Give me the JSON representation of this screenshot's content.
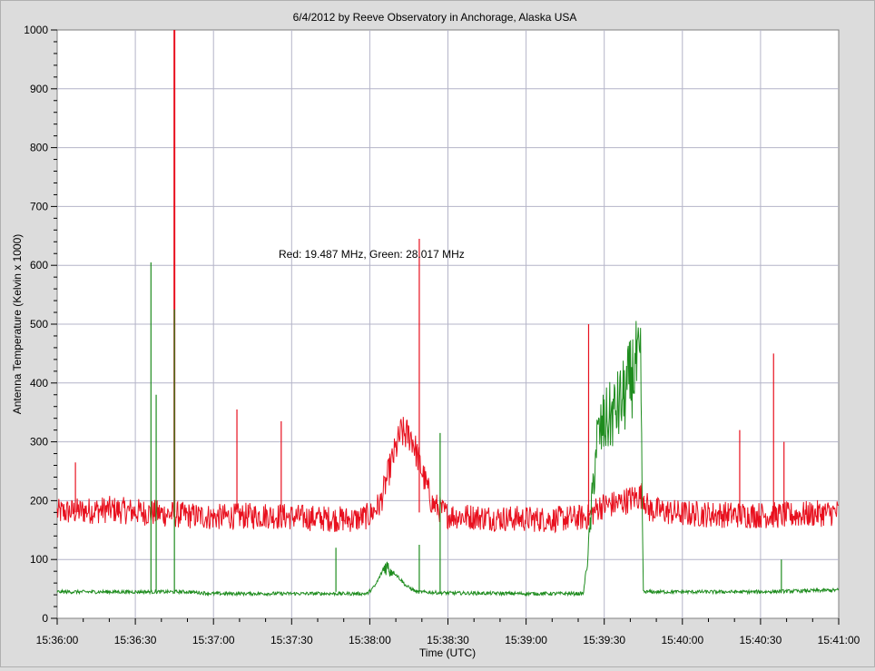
{
  "chart_data": {
    "type": "line",
    "title": "6/4/2012  by  Reeve Observatory  in  Anchorage, Alaska  USA",
    "annotation": "Red: 19.487 MHz, Green: 28.017 MHz",
    "xlabel": "Time (UTC)",
    "ylabel": "Antenna Temperature (Kelvin x 1000)",
    "xlim": [
      "15:36:00",
      "15:41:00"
    ],
    "ylim": [
      0,
      1000
    ],
    "x_tick_labels": [
      "15:36:00",
      "15:36:30",
      "15:37:00",
      "15:37:30",
      "15:38:00",
      "15:38:30",
      "15:39:00",
      "15:39:30",
      "15:40:00",
      "15:40:30",
      "15:41:00"
    ],
    "y_tick_labels": [
      "0",
      "100",
      "200",
      "300",
      "400",
      "500",
      "600",
      "700",
      "800",
      "900",
      "1000"
    ],
    "grid": true,
    "background": "#ffffff",
    "series": [
      {
        "color": "#e8101e",
        "baseline": 180,
        "x": [
          "15:36:00",
          "15:36:20",
          "15:36:40",
          "15:37:00",
          "15:37:20",
          "15:37:40",
          "15:37:55",
          "15:38:00",
          "15:38:04",
          "15:38:08",
          "15:38:12",
          "15:38:16",
          "15:38:20",
          "15:38:24",
          "15:38:30",
          "15:38:50",
          "15:39:10",
          "15:39:24",
          "15:39:28",
          "15:39:35",
          "15:39:45",
          "15:39:47",
          "15:40:00",
          "15:40:20",
          "15:40:40",
          "15:41:00"
        ],
        "y": [
          180,
          185,
          178,
          172,
          175,
          170,
          168,
          175,
          195,
          260,
          315,
          310,
          250,
          195,
          175,
          170,
          168,
          172,
          190,
          195,
          210,
          185,
          178,
          176,
          175,
          180
        ],
        "spikes": [
          {
            "x": "15:36:07",
            "y": 265
          },
          {
            "x": "15:36:45",
            "y": 1000
          },
          {
            "x": "15:37:09",
            "y": 355
          },
          {
            "x": "15:37:26",
            "y": 335
          },
          {
            "x": "15:38:19",
            "y": 645
          },
          {
            "x": "15:39:24",
            "y": 500
          },
          {
            "x": "15:40:22",
            "y": 320
          },
          {
            "x": "15:40:35",
            "y": 450
          },
          {
            "x": "15:40:39",
            "y": 300
          }
        ]
      },
      {
        "color": "#1e8c1e",
        "baseline": 45,
        "x": [
          "15:36:00",
          "15:36:30",
          "15:36:50",
          "15:37:00",
          "15:37:30",
          "15:37:59",
          "15:38:02",
          "15:38:06",
          "15:38:10",
          "15:38:14",
          "15:38:18",
          "15:38:30",
          "15:39:00",
          "15:39:22",
          "15:39:24",
          "15:39:27",
          "15:39:30",
          "15:39:34",
          "15:39:38",
          "15:39:42",
          "15:39:44",
          "15:39:45",
          "15:40:00",
          "15:40:30",
          "15:41:00"
        ],
        "y": [
          45,
          45,
          45,
          42,
          42,
          42,
          55,
          90,
          75,
          55,
          45,
          43,
          42,
          42,
          120,
          300,
          330,
          350,
          380,
          430,
          420,
          45,
          45,
          45,
          48
        ],
        "spikes": [
          {
            "x": "15:36:36",
            "y": 605
          },
          {
            "x": "15:36:38",
            "y": 380
          },
          {
            "x": "15:36:45",
            "y": 525
          },
          {
            "x": "15:37:47",
            "y": 120
          },
          {
            "x": "15:38:19",
            "y": 125
          },
          {
            "x": "15:38:27",
            "y": 315
          },
          {
            "x": "15:40:38",
            "y": 100
          }
        ]
      }
    ]
  }
}
